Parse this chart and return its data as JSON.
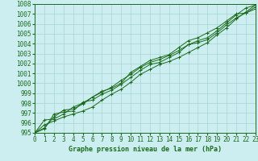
{
  "xlabel": "Graphe pression niveau de la mer (hPa)",
  "bg_color": "#cceef0",
  "grid_color": "#a8d4d4",
  "line_color": "#1a6b1a",
  "xlim": [
    0,
    23
  ],
  "ylim": [
    995,
    1008
  ],
  "xticks": [
    0,
    1,
    2,
    3,
    4,
    5,
    6,
    7,
    8,
    9,
    10,
    11,
    12,
    13,
    14,
    15,
    16,
    17,
    18,
    19,
    20,
    21,
    22,
    23
  ],
  "yticks": [
    995,
    996,
    997,
    998,
    999,
    1000,
    1001,
    1002,
    1003,
    1004,
    1005,
    1006,
    1007,
    1008
  ],
  "series": [
    [
      995.0,
      995.8,
      996.2,
      996.6,
      996.9,
      997.2,
      997.6,
      998.3,
      998.9,
      999.4,
      1000.1,
      1000.9,
      1001.4,
      1001.9,
      1002.2,
      1002.6,
      1003.1,
      1003.6,
      1004.1,
      1004.9,
      1005.6,
      1006.5,
      1007.2,
      1007.9
    ],
    [
      995.0,
      995.5,
      996.6,
      997.3,
      997.4,
      997.9,
      998.6,
      999.1,
      999.6,
      1000.3,
      1000.9,
      1001.6,
      1002.1,
      1002.4,
      1002.8,
      1003.3,
      1003.9,
      1004.3,
      1004.6,
      1005.3,
      1006.1,
      1006.9,
      1007.6,
      1007.9
    ],
    [
      995.0,
      996.3,
      996.4,
      996.9,
      997.6,
      998.0,
      998.6,
      999.2,
      999.5,
      1000.0,
      1001.1,
      1001.7,
      1002.3,
      1002.6,
      1002.9,
      1003.6,
      1004.3,
      1004.6,
      1005.1,
      1005.6,
      1006.3,
      1007.0,
      1007.1,
      1007.5
    ],
    [
      995.0,
      995.4,
      996.9,
      997.1,
      997.2,
      998.1,
      998.3,
      998.9,
      999.3,
      999.9,
      1000.6,
      1001.3,
      1001.9,
      1002.1,
      1002.6,
      1003.1,
      1003.9,
      1004.1,
      1004.4,
      1005.1,
      1005.9,
      1006.6,
      1007.1,
      1007.7
    ]
  ],
  "tick_fontsize": 5.5,
  "xlabel_fontsize": 6.0
}
